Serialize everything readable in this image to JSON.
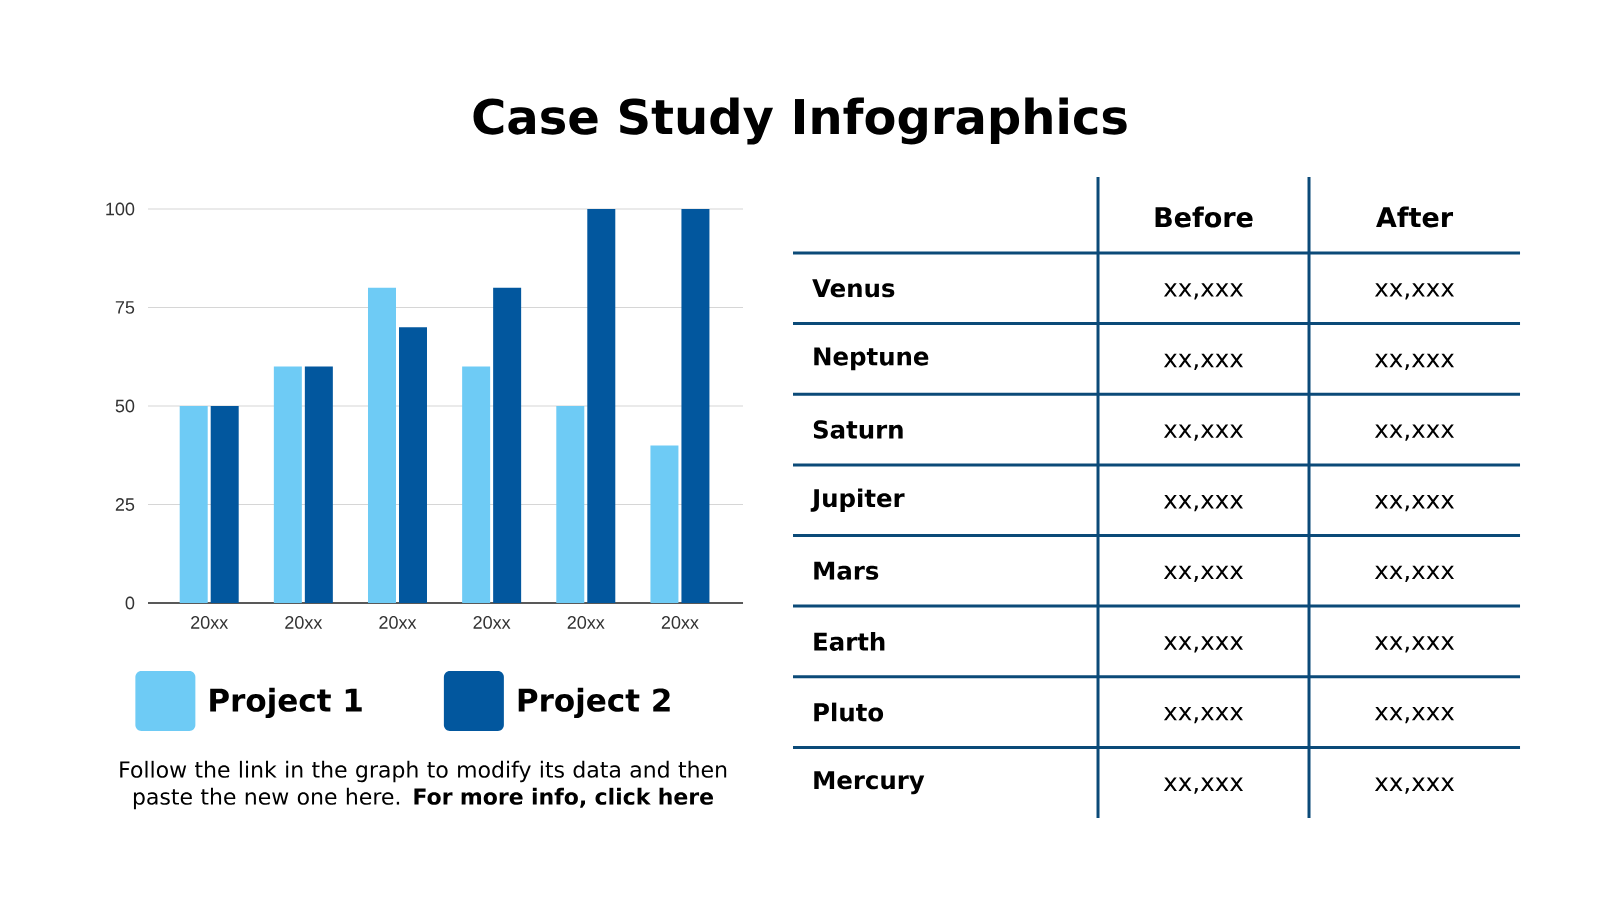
{
  "chart_data": [
    {
      "type": "bar",
      "title": "Case Study Infographics",
      "categories": [
        "20xx",
        "20xx",
        "20xx",
        "20xx",
        "20xx",
        "20xx"
      ],
      "series": [
        {
          "name": "Project 1",
          "color": "#6ecbf5",
          "values": [
            50,
            60,
            80,
            60,
            50,
            40
          ]
        },
        {
          "name": "Project 2",
          "color": "#02579e",
          "values": [
            50,
            60,
            70,
            80,
            100,
            100
          ]
        }
      ],
      "ylim": [
        0,
        100
      ],
      "yticks": [
        0,
        25,
        50,
        75,
        100
      ],
      "grid": "y",
      "legend": "bottom",
      "annotations": [
        "Follow the link in the graph to modify its data and then paste the new one here. **For more info, click here**"
      ]
    },
    {
      "type": "other",
      "categories": [
        "Before",
        "After"
      ],
      "y_categories": [
        "Venus",
        "Neptune",
        "Saturn",
        "Jupiter",
        "Mars",
        "Earth",
        "Pluto",
        "Mercury"
      ],
      "cell_labels": [
        [
          "xx,xxx",
          "xx,xxx"
        ],
        [
          "xx,xxx",
          "xx,xxx"
        ],
        [
          "xx,xxx",
          "xx,xxx"
        ],
        [
          "xx,xxx",
          "xx,xxx"
        ],
        [
          "xx,xxx",
          "xx,xxx"
        ],
        [
          "xx,xxx",
          "xx,xxx"
        ],
        [
          "xx,xxx",
          "xx,xxx"
        ],
        [
          "xx,xxx",
          "xx,xxx"
        ]
      ]
    }
  ]
}
